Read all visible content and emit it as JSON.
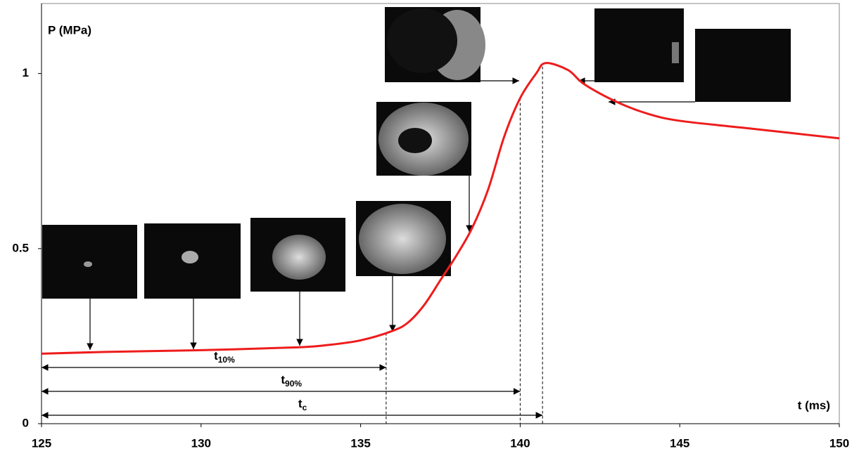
{
  "chart_data": {
    "type": "line",
    "y_label": "P (MPa)",
    "x_label": "t (ms)",
    "xlim": [
      125,
      150
    ],
    "xticks": [
      125,
      130,
      135,
      140,
      145,
      150
    ],
    "ylim": [
      0,
      1.2
    ],
    "yticks": [
      0,
      0.5,
      1
    ],
    "series": [
      {
        "color": "#ee1c1c",
        "x": [
          125,
          127,
          130,
          133,
          134,
          135,
          136,
          136.5,
          137,
          137.5,
          138,
          138.5,
          139,
          139.5,
          140,
          140.5,
          140.8,
          141.5,
          142,
          143,
          144,
          145,
          147,
          150
        ],
        "values": [
          0.2,
          0.205,
          0.21,
          0.218,
          0.225,
          0.238,
          0.265,
          0.29,
          0.34,
          0.41,
          0.48,
          0.56,
          0.67,
          0.82,
          0.93,
          1.0,
          1.03,
          1.01,
          0.97,
          0.92,
          0.885,
          0.865,
          0.845,
          0.815
        ]
      }
    ],
    "annotations": [
      {
        "label": "t",
        "sub": "10%",
        "x": 135.8
      },
      {
        "label": "t",
        "sub": "90%",
        "x": 140.0
      },
      {
        "label": "t",
        "sub": "c",
        "x": 140.7
      }
    ]
  }
}
